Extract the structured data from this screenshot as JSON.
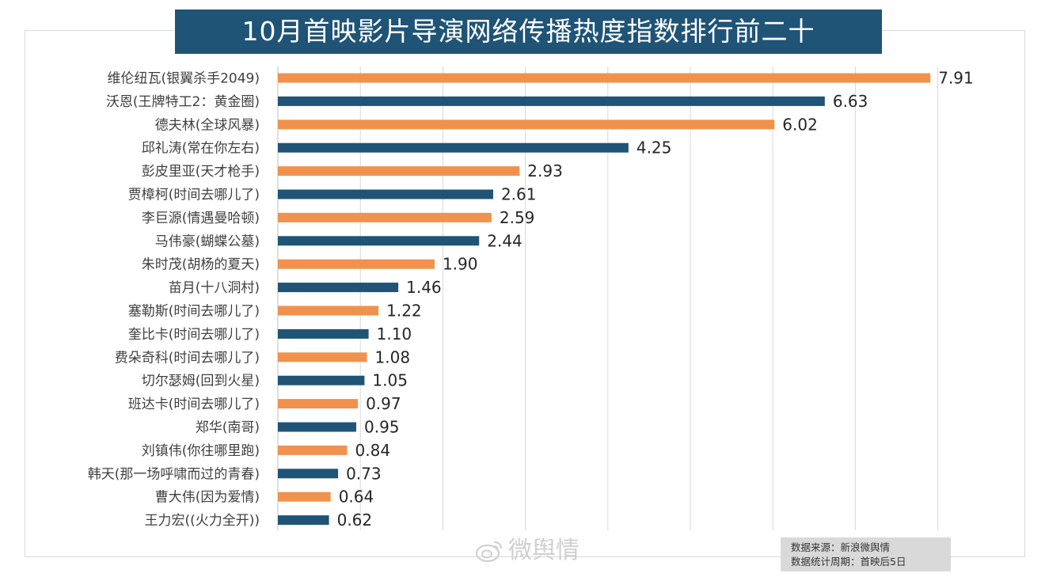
{
  "title": "10月首映影片导演网络传播热度指数排行前二十",
  "colors": {
    "orange": "#f0924e",
    "blue": "#1f5477",
    "title_bg": "#1f5477",
    "grid": "#d9d9d9"
  },
  "chart_data": {
    "type": "bar",
    "orientation": "horizontal",
    "title": "10月首映影片导演网络传播热度指数排行前二十",
    "xlabel": "",
    "ylabel": "",
    "xlim": [
      0,
      8
    ],
    "grid": true,
    "color_pattern": [
      "orange",
      "blue"
    ],
    "categories": [
      "维伦纽瓦(银翼杀手2049)",
      "沃恩(王牌特工2：黄金圈)",
      "德夫林(全球风暴)",
      "邱礼涛(常在你左右)",
      "彭皮里亚(天才枪手)",
      "贾樟柯(时间去哪儿了)",
      "李巨源(情遇曼哈顿)",
      "马伟豪(蝴蝶公墓)",
      "朱时茂(胡杨的夏天)",
      "苗月(十八洞村)",
      "塞勒斯(时间去哪儿了)",
      "奎比卡(时间去哪儿了)",
      "费朵奇科(时间去哪儿了)",
      "切尔瑟姆(回到火星)",
      "班达卡(时间去哪儿了)",
      "郑华(南哥)",
      "刘镇伟(你往哪里跑)",
      "韩天(那一场呼啸而过的青春)",
      "曹大伟(因为爱情)",
      "王力宏((火力全开))"
    ],
    "values": [
      7.91,
      6.63,
      6.02,
      4.25,
      2.93,
      2.61,
      2.59,
      2.44,
      1.9,
      1.46,
      1.22,
      1.1,
      1.08,
      1.05,
      0.97,
      0.95,
      0.84,
      0.73,
      0.64,
      0.62
    ],
    "value_labels": [
      "7.91",
      "6.63",
      "6.02",
      "4.25",
      "2.93",
      "2.61",
      "2.59",
      "2.44",
      "1.90",
      "1.46",
      "1.22",
      "1.10",
      "1.08",
      "1.05",
      "0.97",
      "0.95",
      "0.84",
      "0.73",
      "0.64",
      "0.62"
    ]
  },
  "watermark": {
    "text": "微舆情"
  },
  "source_note": {
    "line1": "数据来源：新浪微舆情",
    "line2": "数据统计周期：首映后5日"
  }
}
